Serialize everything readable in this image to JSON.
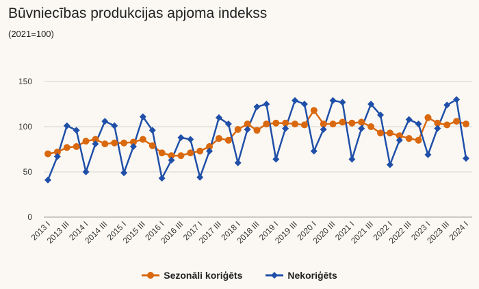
{
  "chart_data": {
    "type": "line",
    "title": "Būvniecības produkcijas apjoma indekss",
    "subtitle": "(2021=100)",
    "xlabel": "",
    "ylabel": "",
    "ylim": [
      0,
      150
    ],
    "yticks": [
      0,
      50,
      100,
      150
    ],
    "grid": true,
    "legend_position": "bottom",
    "x": [
      "2013 I",
      "2013 II",
      "2013 III",
      "2013 IV",
      "2014 I",
      "2014 II",
      "2014 III",
      "2014 IV",
      "2015 I",
      "2015 II",
      "2015 III",
      "2015 IV",
      "2016 I",
      "2016 II",
      "2016 III",
      "2016 IV",
      "2017 I",
      "2017 II",
      "2017 III",
      "2017 IV",
      "2018 I",
      "2018 II",
      "2018 III",
      "2018 IV",
      "2019 I",
      "2019 II",
      "2019 III",
      "2019 IV",
      "2020 I",
      "2020 II",
      "2020 III",
      "2020 IV",
      "2021 I",
      "2021 II",
      "2021 III",
      "2021 IV",
      "2022 I",
      "2022 II",
      "2022 III",
      "2022 IV",
      "2023 I",
      "2023 II",
      "2023 III",
      "2023 IV",
      "2024 I"
    ],
    "tick_labels": [
      "2013 I",
      "2013 III",
      "2014 I",
      "2014 III",
      "2015 I",
      "2015 III",
      "2016 I",
      "2016 III",
      "2017 I",
      "2017 III",
      "2018 I",
      "2018 III",
      "2019 I",
      "2019 III",
      "2020 I",
      "2020 III",
      "2021 I",
      "2021 III",
      "2022 I",
      "2022 III",
      "2023 I",
      "2023 III",
      "2024 I"
    ],
    "series": [
      {
        "name": "Sezonāli koriģēts",
        "color": "#d9680f",
        "marker": "circle",
        "values": [
          70,
          72,
          77,
          78,
          84,
          86,
          81,
          82,
          82,
          83,
          86,
          79,
          71,
          68,
          68,
          71,
          73,
          78,
          87,
          85,
          97,
          103,
          96,
          103,
          104,
          104,
          103,
          102,
          118,
          103,
          103,
          105,
          104,
          105,
          100,
          93,
          93,
          90,
          87,
          85,
          110,
          104,
          102,
          106,
          103
        ]
      },
      {
        "name": "Nekoriģēts",
        "color": "#1f4fa8",
        "marker": "diamond",
        "values": [
          41,
          67,
          101,
          96,
          50,
          81,
          106,
          101,
          49,
          78,
          111,
          96,
          43,
          63,
          88,
          86,
          44,
          73,
          110,
          103,
          60,
          97,
          122,
          125,
          64,
          98,
          129,
          125,
          73,
          97,
          129,
          127,
          64,
          98,
          125,
          113,
          58,
          85,
          108,
          103,
          69,
          98,
          124,
          130,
          65
        ]
      }
    ]
  }
}
